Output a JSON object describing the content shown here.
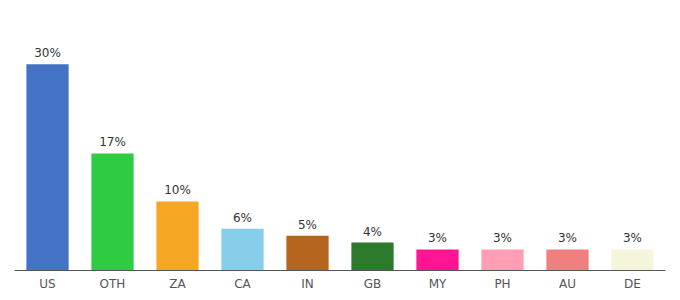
{
  "chart_data": {
    "type": "bar",
    "categories": [
      "US",
      "OTH",
      "ZA",
      "CA",
      "IN",
      "GB",
      "MY",
      "PH",
      "AU",
      "DE"
    ],
    "values": [
      30,
      17,
      10,
      6,
      5,
      4,
      3,
      3,
      3,
      3
    ],
    "value_labels": [
      "30%",
      "17%",
      "10%",
      "6%",
      "5%",
      "4%",
      "3%",
      "3%",
      "3%",
      "3%"
    ],
    "colors": [
      "#4472c4",
      "#2ecc40",
      "#f5a623",
      "#87ceeb",
      "#b5651d",
      "#2d7a2d",
      "#ff1493",
      "#ff9eb5",
      "#f08080",
      "#f5f5dc"
    ],
    "ylim": [
      0,
      35
    ],
    "grid": false,
    "data_labels": true,
    "tick_labels": "x"
  }
}
